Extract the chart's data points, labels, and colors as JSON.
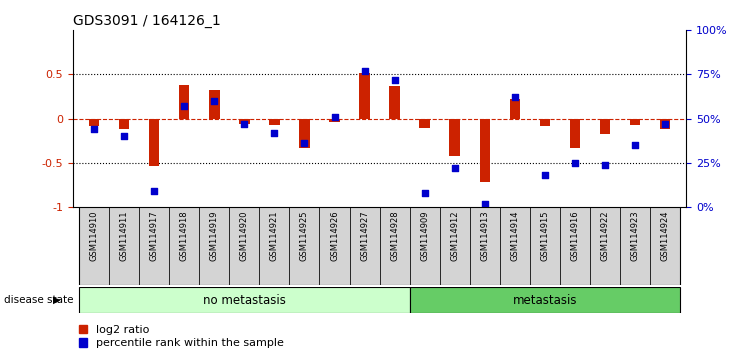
{
  "title": "GDS3091 / 164126_1",
  "samples": [
    "GSM114910",
    "GSM114911",
    "GSM114917",
    "GSM114918",
    "GSM114919",
    "GSM114920",
    "GSM114921",
    "GSM114925",
    "GSM114926",
    "GSM114927",
    "GSM114928",
    "GSM114909",
    "GSM114912",
    "GSM114913",
    "GSM114914",
    "GSM114915",
    "GSM114916",
    "GSM114922",
    "GSM114923",
    "GSM114924"
  ],
  "log2_ratio": [
    -0.08,
    -0.12,
    -0.54,
    0.38,
    0.32,
    -0.06,
    -0.07,
    -0.33,
    -0.04,
    0.52,
    0.37,
    -0.11,
    -0.42,
    -0.72,
    0.22,
    -0.08,
    -0.33,
    -0.17,
    -0.07,
    -0.12
  ],
  "percentile": [
    44,
    40,
    9,
    57,
    60,
    47,
    42,
    36,
    51,
    77,
    72,
    8,
    22,
    2,
    62,
    18,
    25,
    24,
    35,
    47
  ],
  "no_metastasis_count": 11,
  "metastasis_count": 9,
  "bar_color": "#cc2200",
  "dot_color": "#0000cc",
  "ylim_left": [
    -1.0,
    1.0
  ],
  "ylim_right": [
    0,
    100
  ],
  "yticks_left": [
    -1.0,
    -0.5,
    0.0,
    0.5
  ],
  "ytick_labels_left": [
    "-1",
    "-0.5",
    "0",
    "0.5"
  ],
  "yticks_right": [
    0,
    25,
    50,
    75,
    100
  ],
  "ytick_labels_right": [
    "0%",
    "25%",
    "50%",
    "75%",
    "100%"
  ],
  "hline_y": 0,
  "dotted_lines": [
    -0.5,
    0.5
  ],
  "bg_color": "#ffffff",
  "tick_label_color_left": "#cc2200",
  "tick_label_color_right": "#0000cc",
  "legend_items": [
    {
      "label": "log2 ratio",
      "color": "#cc2200"
    },
    {
      "label": "percentile rank within the sample",
      "color": "#0000cc"
    }
  ],
  "no_meta_label": "no metastasis",
  "meta_label": "metastasis",
  "disease_label": "disease state",
  "no_meta_color": "#ccffcc",
  "meta_color": "#66cc66",
  "bar_width": 0.35,
  "dot_size": 18,
  "label_box_color": "#d4d4d4",
  "title_fontsize": 10,
  "axis_fontsize": 8,
  "sample_fontsize": 6,
  "legend_fontsize": 8
}
